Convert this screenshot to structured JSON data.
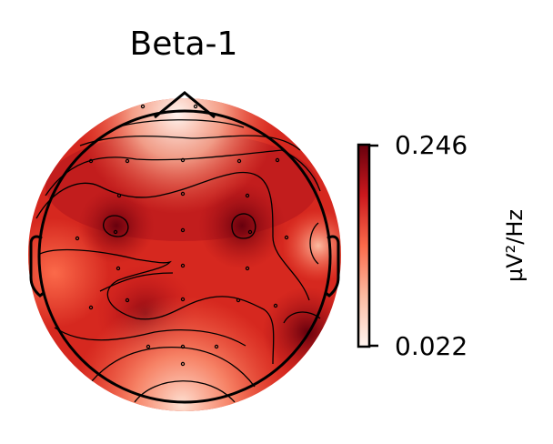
{
  "chart_data": {
    "type": "heatmap",
    "subtype": "eeg-topomap",
    "title": "Beta-1",
    "colorbar": {
      "label": "µV²/Hz",
      "min": 0.022,
      "max": 0.246,
      "ticks": [
        "0.246",
        "0.022"
      ],
      "colormap": [
        "#fff5f0",
        "#fcbba1",
        "#fb6a4a",
        "#cb181d",
        "#67000d"
      ]
    },
    "grid": false,
    "legend": "none"
  }
}
